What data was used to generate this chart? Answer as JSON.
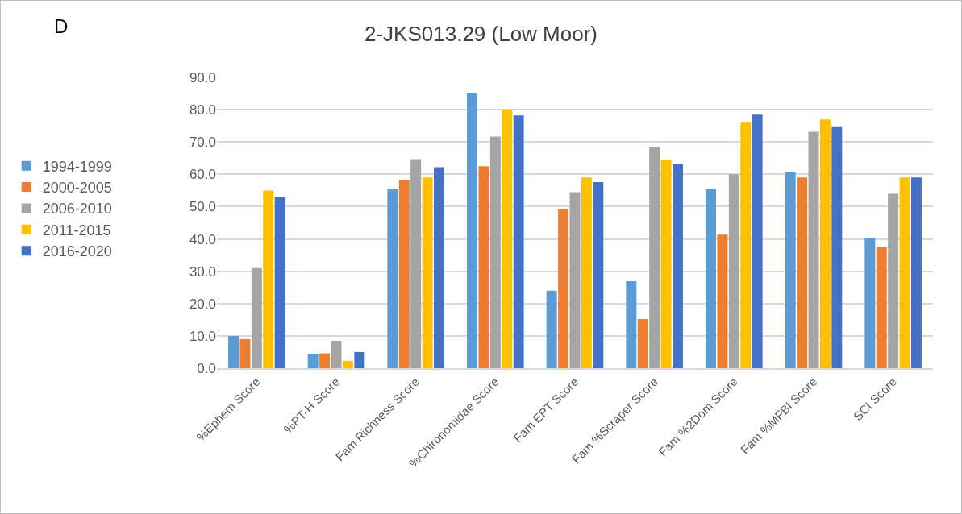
{
  "chart_data": {
    "type": "bar",
    "title": "2-JKS013.29 (Low Moor)",
    "annotations": [
      "D"
    ],
    "categories": [
      "%Ephem Score",
      "%PT-H Score",
      "Fam Richness Score",
      "%Chironomidae Score",
      "Fam EPT Score",
      "Fam %Scraper Score",
      "Fam %2Dom Score",
      "Fam %MFBI Score",
      "SCI Score"
    ],
    "series": [
      {
        "name": "1994-1999",
        "color": "#5b9bd5",
        "values": [
          10,
          4.3,
          55.5,
          85.2,
          24,
          26.9,
          55.5,
          60.7,
          40.2
        ]
      },
      {
        "name": "2000-2005",
        "color": "#ed7d31",
        "values": [
          9,
          4.6,
          58.3,
          62.5,
          49.2,
          15.2,
          41.3,
          59,
          37.4
        ]
      },
      {
        "name": "2006-2010",
        "color": "#a5a5a5",
        "values": [
          31,
          8.5,
          64.7,
          71.7,
          54.5,
          68.5,
          60,
          73.2,
          54
        ]
      },
      {
        "name": "2011-2015",
        "color": "#ffc000",
        "values": [
          55,
          2.3,
          59,
          80,
          59,
          64.3,
          76,
          77,
          59
        ]
      },
      {
        "name": "2016-2020",
        "color": "#4472c4",
        "values": [
          53,
          5,
          62.2,
          78.2,
          57.6,
          63.2,
          78.5,
          74.6,
          59
        ]
      }
    ],
    "ylim": [
      0,
      90
    ],
    "yticks": [
      {
        "value": 0,
        "label": "0.0"
      },
      {
        "value": 10,
        "label": "10.0"
      },
      {
        "value": 20,
        "label": "20.0"
      },
      {
        "value": 30,
        "label": "30.0"
      },
      {
        "value": 40,
        "label": "40.0"
      },
      {
        "value": 50,
        "label": "50.0"
      },
      {
        "value": 60,
        "label": "60.0"
      },
      {
        "value": 70,
        "label": "70.0"
      },
      {
        "value": 80,
        "label": "80.0"
      },
      {
        "value": 90,
        "label": "90.0"
      }
    ],
    "grid": "y",
    "legend": "left"
  }
}
